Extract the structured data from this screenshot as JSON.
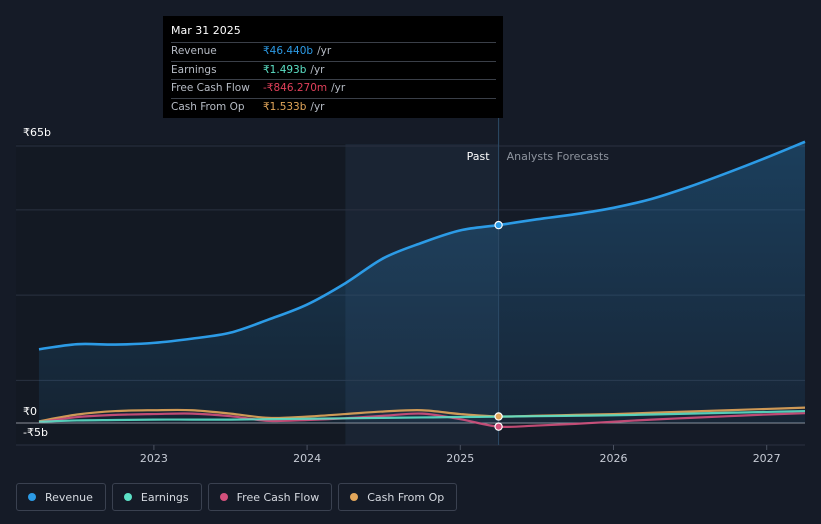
{
  "colors": {
    "revenue": "#2c9be6",
    "earnings": "#5ce0c6",
    "fcf": "#d3507c",
    "cfo": "#e2a65a",
    "background": "#151b27",
    "past_band": "#1a2433"
  },
  "tooltip": {
    "date": "Mar 31 2025",
    "rows": [
      {
        "label": "Revenue",
        "value": "₹46.440b",
        "unit": "/yr",
        "color": "#2c9be6"
      },
      {
        "label": "Earnings",
        "value": "₹1.493b",
        "unit": "/yr",
        "color": "#5ce0c6"
      },
      {
        "label": "Free Cash Flow",
        "value": "-₹846.270m",
        "unit": "/yr",
        "color": "#e0405a"
      },
      {
        "label": "Cash From Op",
        "value": "₹1.533b",
        "unit": "/yr",
        "color": "#e2a65a"
      }
    ]
  },
  "labels": {
    "past": "Past",
    "forecast": "Analysts Forecasts"
  },
  "chart_data": {
    "type": "line",
    "y_tick_labels": [
      "₹65b",
      "₹0",
      "-₹5b"
    ],
    "ylim": [
      -5,
      65
    ],
    "xlim": [
      2022.1,
      2027.25
    ],
    "x_ticks": [
      2023,
      2024,
      2025,
      2026,
      2027
    ],
    "x_tick_labels": [
      "2023",
      "2024",
      "2025",
      "2026",
      "2027"
    ],
    "past_end": 2025.25,
    "highlight_start": 2024.25,
    "grid": true,
    "series": [
      {
        "name": "Revenue",
        "key": "revenue",
        "x": [
          2022.25,
          2022.5,
          2022.75,
          2023.0,
          2023.25,
          2023.5,
          2023.75,
          2024.0,
          2024.25,
          2024.5,
          2024.75,
          2025.0,
          2025.25,
          2025.5,
          2025.75,
          2026.0,
          2026.25,
          2026.5,
          2026.75,
          2027.0,
          2027.25
        ],
        "y": [
          17.3,
          18.5,
          18.4,
          18.8,
          19.8,
          21.2,
          24.3,
          27.8,
          32.8,
          38.7,
          42.3,
          45.2,
          46.44,
          47.8,
          49.0,
          50.5,
          52.6,
          55.5,
          58.8,
          62.3,
          66.0
        ]
      },
      {
        "name": "Earnings",
        "key": "earnings",
        "x": [
          2022.25,
          2022.5,
          2022.75,
          2023.0,
          2023.25,
          2023.5,
          2023.75,
          2024.0,
          2024.25,
          2024.5,
          2024.75,
          2025.0,
          2025.25,
          2025.5,
          2025.75,
          2026.0,
          2026.25,
          2026.5,
          2026.75,
          2027.0,
          2027.25
        ],
        "y": [
          0.3,
          0.6,
          0.7,
          0.8,
          0.8,
          0.8,
          0.9,
          1.0,
          1.1,
          1.2,
          1.3,
          1.4,
          1.49,
          1.6,
          1.7,
          1.8,
          2.0,
          2.2,
          2.4,
          2.6,
          2.8
        ]
      },
      {
        "name": "Free Cash Flow",
        "key": "fcf",
        "x": [
          2022.25,
          2022.5,
          2022.75,
          2023.0,
          2023.25,
          2023.5,
          2023.75,
          2024.0,
          2024.25,
          2024.5,
          2024.75,
          2025.0,
          2025.25,
          2025.5,
          2025.75,
          2026.0,
          2026.25,
          2026.5,
          2026.75,
          2027.0,
          2027.25
        ],
        "y": [
          0.2,
          1.4,
          1.9,
          2.1,
          2.2,
          1.6,
          0.5,
          0.7,
          1.1,
          1.7,
          2.2,
          0.9,
          -0.85,
          -0.6,
          -0.2,
          0.3,
          0.8,
          1.2,
          1.6,
          2.0,
          2.3
        ]
      },
      {
        "name": "Cash From Op",
        "key": "cfo",
        "x": [
          2022.25,
          2022.5,
          2022.75,
          2023.0,
          2023.25,
          2023.5,
          2023.75,
          2024.0,
          2024.25,
          2024.5,
          2024.75,
          2025.0,
          2025.25,
          2025.5,
          2025.75,
          2026.0,
          2026.25,
          2026.5,
          2026.75,
          2027.0,
          2027.25
        ],
        "y": [
          0.4,
          2.0,
          2.8,
          3.0,
          3.0,
          2.2,
          1.2,
          1.5,
          2.1,
          2.7,
          3.0,
          2.1,
          1.53,
          1.7,
          1.9,
          2.1,
          2.4,
          2.7,
          3.0,
          3.3,
          3.6
        ]
      }
    ]
  },
  "legend": [
    {
      "label": "Revenue",
      "color": "#2c9be6"
    },
    {
      "label": "Earnings",
      "color": "#5ce0c6"
    },
    {
      "label": "Free Cash Flow",
      "color": "#d3507c"
    },
    {
      "label": "Cash From Op",
      "color": "#e2a65a"
    }
  ]
}
